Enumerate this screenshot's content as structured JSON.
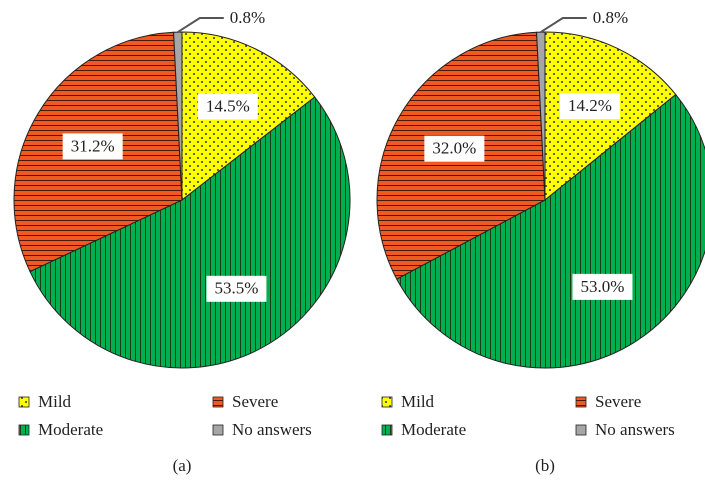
{
  "chart_data": [
    {
      "type": "pie",
      "caption": "(a)",
      "categories": [
        "Mild",
        "Moderate",
        "Severe",
        "No answers"
      ],
      "values": [
        14.5,
        53.5,
        31.2,
        0.8
      ],
      "value_labels": [
        "14.5%",
        "53.5%",
        "31.2%",
        "0.8%"
      ],
      "colors": [
        "#ffff00",
        "#00b050",
        "#f05a22",
        "#a6a6a6"
      ]
    },
    {
      "type": "pie",
      "caption": "(b)",
      "categories": [
        "Mild",
        "Moderate",
        "Severe",
        "No answers"
      ],
      "values": [
        14.2,
        53.0,
        32.0,
        0.8
      ],
      "value_labels": [
        "14.2%",
        "53.0%",
        "32.0%",
        "0.8%"
      ],
      "colors": [
        "#ffff00",
        "#00b050",
        "#f05a22",
        "#a6a6a6"
      ]
    }
  ]
}
